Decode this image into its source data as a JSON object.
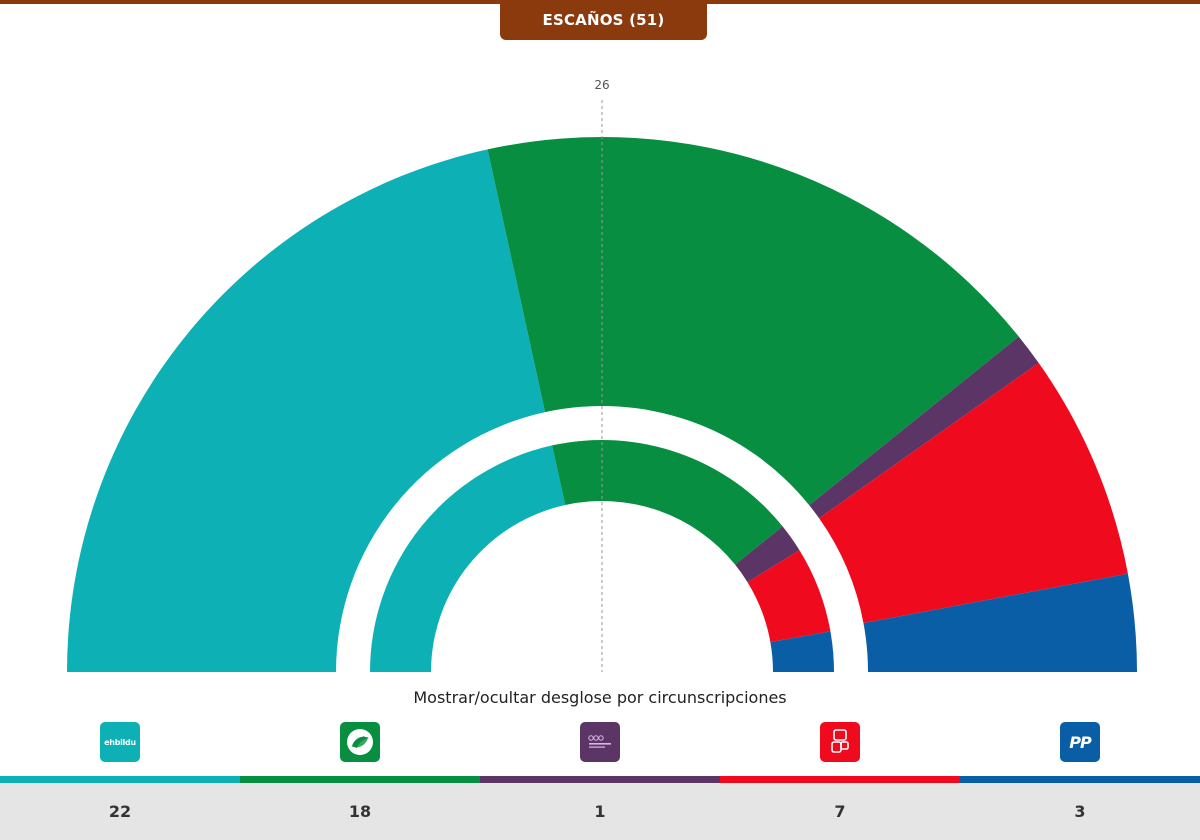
{
  "header": {
    "title": "ESCAÑOS (51)"
  },
  "majority_label": "26",
  "breakdown_toggle": "Mostrar/ocultar desglose por circunscripciones",
  "chart_data": {
    "type": "hemicycle",
    "total_seats": 51,
    "majority": 26,
    "series": [
      {
        "party": "ehbildu",
        "seats": 22,
        "color": "#0db0b4",
        "logo_text": "ehbildu",
        "logo_icon": "ehbildu-logo"
      },
      {
        "party": "pnv",
        "seats": 18,
        "color": "#078e41",
        "logo_text": "",
        "logo_icon": "pnv-leaf-logo"
      },
      {
        "party": "podemos",
        "seats": 1,
        "color": "#5c3567",
        "logo_text": "",
        "logo_icon": "podemos-logo"
      },
      {
        "party": "psoe",
        "seats": 7,
        "color": "#ef0a1e",
        "logo_text": "",
        "logo_icon": "psoe-logo"
      },
      {
        "party": "pp",
        "seats": 3,
        "color": "#0a5ea6",
        "logo_text": "PP",
        "logo_icon": "pp-logo"
      }
    ],
    "inner_ring": [
      {
        "party": "ehbildu",
        "share": 0.431
      },
      {
        "party": "pnv",
        "share": 0.353
      },
      {
        "party": "podemos",
        "share": 0.04
      },
      {
        "party": "psoe",
        "share": 0.12
      },
      {
        "party": "pp",
        "share": 0.056
      }
    ]
  }
}
